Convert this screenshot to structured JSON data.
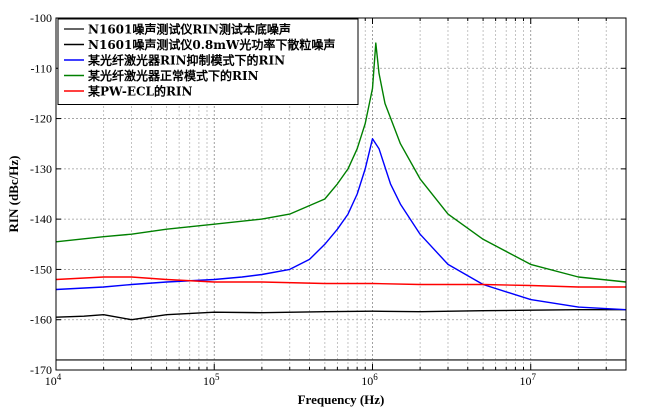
{
  "chart_data": {
    "type": "line",
    "title": "",
    "xlabel": "Frequency (Hz)",
    "ylabel": "RIN (dBc/Hz)",
    "x_scale": "log",
    "xlim": [
      10000,
      40000000
    ],
    "ylim": [
      -170,
      -100
    ],
    "grid": true,
    "legend_position": "top-left",
    "x_ticks": [
      {
        "value": 10000,
        "base": "10",
        "exp": "4"
      },
      {
        "value": 100000,
        "base": "10",
        "exp": "5"
      },
      {
        "value": 1000000,
        "base": "10",
        "exp": "6"
      },
      {
        "value": 10000000,
        "base": "10",
        "exp": "7"
      }
    ],
    "y_ticks": [
      {
        "value": -100,
        "label": "-100"
      },
      {
        "value": -110,
        "label": "-110"
      },
      {
        "value": -120,
        "label": "-120"
      },
      {
        "value": -130,
        "label": "-130"
      },
      {
        "value": -140,
        "label": "-140"
      },
      {
        "value": -150,
        "label": "-150"
      },
      {
        "value": -160,
        "label": "-160"
      },
      {
        "value": -170,
        "label": "-170"
      }
    ],
    "series": [
      {
        "name": "N1601噪声测试仪RIN测试本底噪声",
        "color": "#333333",
        "x": [
          10000,
          40000000
        ],
        "y": [
          -168.0,
          -168.0
        ]
      },
      {
        "name": "N1601噪声测试仪0.8mW光功率下散粒噪声",
        "color": "#000000",
        "x": [
          10000,
          15000,
          20000,
          30000,
          50000,
          100000,
          200000,
          500000,
          1000000,
          2000000,
          5000000,
          10000000,
          20000000,
          40000000
        ],
        "y": [
          -159.5,
          -159.3,
          -159.0,
          -160.0,
          -159.0,
          -158.5,
          -158.6,
          -158.4,
          -158.3,
          -158.4,
          -158.2,
          -158.1,
          -158.0,
          -158.0
        ]
      },
      {
        "name": "某光纤激光器RIN抑制模式下的RIN",
        "color": "#0000ff",
        "x": [
          10000,
          20000,
          30000,
          50000,
          100000,
          150000,
          200000,
          300000,
          400000,
          500000,
          600000,
          700000,
          800000,
          900000,
          1000000,
          1100000,
          1300000,
          1500000,
          2000000,
          3000000,
          5000000,
          10000000,
          20000000,
          40000000
        ],
        "y": [
          -154.0,
          -153.5,
          -153.0,
          -152.5,
          -152.0,
          -151.5,
          -151.0,
          -150.0,
          -148.0,
          -145.0,
          -142.0,
          -139.0,
          -135.0,
          -130.0,
          -124.0,
          -126.0,
          -133.0,
          -137.0,
          -143.0,
          -149.0,
          -153.0,
          -156.0,
          -157.5,
          -158.0
        ]
      },
      {
        "name": "某光纤激光器正常模式下的RIN",
        "color": "#008000",
        "x": [
          10000,
          20000,
          30000,
          50000,
          100000,
          200000,
          300000,
          500000,
          600000,
          700000,
          800000,
          900000,
          1000000,
          1050000,
          1100000,
          1200000,
          1500000,
          2000000,
          3000000,
          5000000,
          10000000,
          20000000,
          40000000
        ],
        "y": [
          -144.5,
          -143.5,
          -143.0,
          -142.0,
          -141.0,
          -140.0,
          -139.0,
          -136.0,
          -133.0,
          -130.0,
          -126.0,
          -121.0,
          -114.0,
          -105.0,
          -111.0,
          -117.0,
          -125.0,
          -132.0,
          -139.0,
          -144.0,
          -149.0,
          -151.5,
          -152.5
        ]
      },
      {
        "name": "某PW-ECL的RIN",
        "color": "#ff0000",
        "x": [
          10000,
          20000,
          30000,
          50000,
          100000,
          200000,
          500000,
          1000000,
          2000000,
          5000000,
          10000000,
          20000000,
          40000000
        ],
        "y": [
          -152.0,
          -151.5,
          -151.5,
          -152.0,
          -152.5,
          -152.5,
          -152.8,
          -152.8,
          -153.0,
          -153.0,
          -153.2,
          -153.5,
          -153.5
        ]
      }
    ]
  }
}
